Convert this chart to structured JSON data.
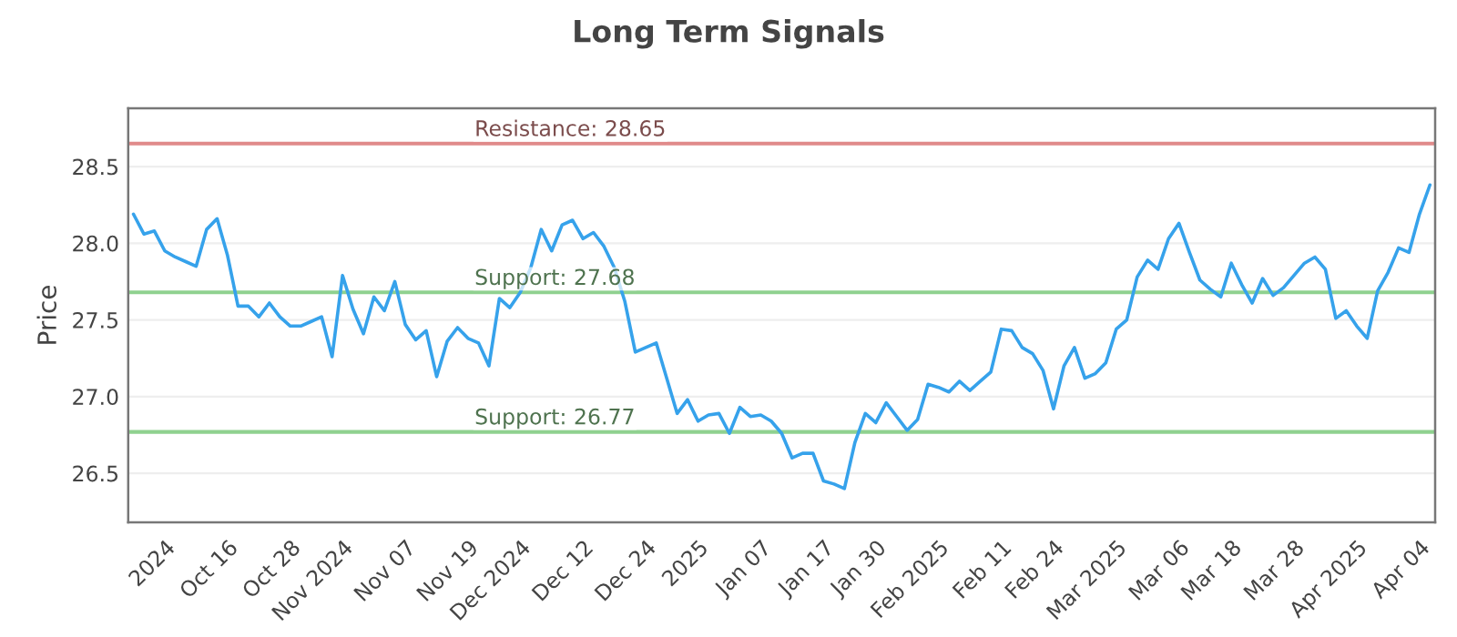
{
  "chart_data": {
    "type": "line",
    "title": "Long Term Signals",
    "ylabel": "Price",
    "categories": [
      null,
      null,
      null,
      "2024",
      null,
      null,
      null,
      null,
      null,
      "Oct 16",
      null,
      null,
      null,
      null,
      null,
      "Oct 28",
      null,
      null,
      null,
      null,
      "Nov 2024",
      null,
      null,
      null,
      null,
      null,
      "Nov 07",
      null,
      null,
      null,
      null,
      null,
      "Nov 19",
      null,
      null,
      null,
      null,
      "Dec 2024",
      null,
      null,
      null,
      null,
      null,
      "Dec 12",
      null,
      null,
      null,
      null,
      null,
      "Dec 24",
      null,
      null,
      null,
      null,
      "2025",
      null,
      null,
      null,
      null,
      null,
      "Jan 07",
      null,
      null,
      null,
      null,
      null,
      "Jan 17",
      null,
      null,
      null,
      null,
      "Jan 30",
      null,
      null,
      null,
      null,
      null,
      "Feb 2025",
      null,
      null,
      null,
      null,
      null,
      "Feb 11",
      null,
      null,
      null,
      null,
      "Feb 24",
      null,
      null,
      null,
      null,
      null,
      "Mar 2025",
      null,
      null,
      null,
      null,
      null,
      "Mar 06",
      null,
      null,
      null,
      null,
      "Mar 18",
      null,
      null,
      null,
      null,
      null,
      "Mar 28",
      null,
      null,
      null,
      null,
      null,
      "Apr 2025",
      null,
      null,
      null,
      null,
      null,
      "Apr 04",
      null
    ],
    "series": [
      {
        "color": "#36a2eb",
        "values": [
          28.19,
          28.06,
          28.08,
          27.95,
          27.91,
          27.88,
          27.85,
          28.09,
          28.16,
          27.92,
          27.59,
          27.59,
          27.52,
          27.61,
          27.52,
          27.46,
          27.46,
          27.49,
          27.52,
          27.26,
          27.79,
          27.57,
          27.41,
          27.65,
          27.56,
          27.75,
          27.47,
          27.37,
          27.43,
          27.13,
          27.36,
          27.45,
          27.38,
          27.35,
          27.2,
          27.64,
          27.58,
          27.68,
          27.84,
          28.09,
          27.95,
          28.12,
          28.15,
          28.03,
          28.07,
          27.98,
          27.84,
          27.62,
          27.29,
          27.32,
          27.35,
          27.12,
          26.89,
          26.98,
          26.84,
          26.88,
          26.89,
          26.76,
          26.93,
          26.87,
          26.88,
          26.84,
          26.76,
          26.6,
          26.63,
          26.63,
          26.45,
          26.43,
          26.4,
          26.7,
          26.89,
          26.83,
          26.96,
          26.87,
          26.78,
          26.85,
          27.08,
          27.06,
          27.03,
          27.1,
          27.04,
          27.1,
          27.16,
          27.44,
          27.43,
          27.32,
          27.28,
          27.17,
          26.92,
          27.2,
          27.32,
          27.12,
          27.15,
          27.22,
          27.44,
          27.5,
          27.78,
          27.89,
          27.83,
          28.03,
          28.13,
          27.94,
          27.76,
          27.7,
          27.65,
          27.87,
          27.73,
          27.61,
          27.77,
          27.66,
          27.71,
          27.79,
          27.87,
          27.91,
          27.83,
          27.51,
          27.56,
          27.46,
          27.38,
          27.69,
          27.81,
          27.97,
          27.94,
          28.19,
          28.38
        ]
      }
    ],
    "ylim": [
      26.18,
      28.88
    ],
    "yticks": [
      26.5,
      {
        "value": 27.0,
        "label": "27.0"
      },
      27.5,
      {
        "value": 28.0,
        "label": "28.0"
      },
      28.5
    ],
    "ref_lines": [
      {
        "axis": "y",
        "value": 28.65,
        "label": "Resistance: 28.65",
        "color": "#e08a8a"
      },
      {
        "axis": "y",
        "value": 27.68,
        "label": "Support: 27.68",
        "color": "#8fd18f"
      },
      {
        "axis": "y",
        "value": 26.77,
        "label": "Support: 26.77",
        "color": "#8fd18f"
      }
    ],
    "grid": "y",
    "line_style": "solid",
    "marker": "none",
    "legend": false
  }
}
